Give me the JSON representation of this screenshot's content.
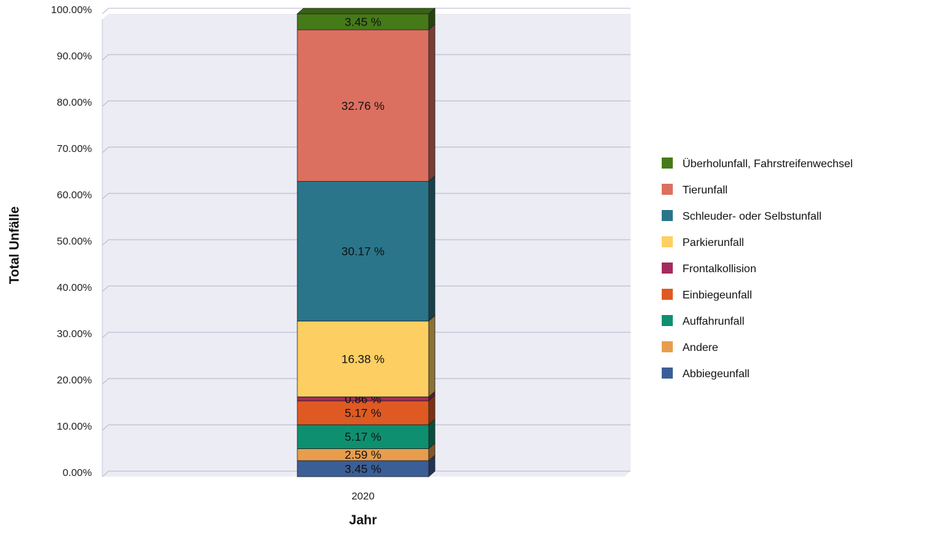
{
  "chart_data": {
    "type": "bar",
    "stacked": true,
    "percent": true,
    "categories": [
      "2020"
    ],
    "xlabel": "Jahr",
    "ylabel": "Total Unfälle",
    "ylim": [
      0,
      100
    ],
    "ytick_labels": [
      "0.00%",
      "10.00%",
      "20.00%",
      "30.00%",
      "40.00%",
      "50.00%",
      "60.00%",
      "70.00%",
      "80.00%",
      "90.00%",
      "100.00%"
    ],
    "grid": true,
    "legend_position": "right",
    "series": [
      {
        "name": "Abbiegeunfall",
        "values": [
          3.45
        ],
        "label": "3.45 %",
        "color": "#3a5f97"
      },
      {
        "name": "Andere",
        "values": [
          2.59
        ],
        "label": "2.59 %",
        "color": "#e89d4d"
      },
      {
        "name": "Auffahrunfall",
        "values": [
          5.17
        ],
        "label": "5.17 %",
        "color": "#0e9070"
      },
      {
        "name": "Einbiegeunfall",
        "values": [
          5.17
        ],
        "label": "5.17 %",
        "color": "#de5a22"
      },
      {
        "name": "Frontalkollision",
        "values": [
          0.86
        ],
        "label": "0.86 %",
        "color": "#a52a5f"
      },
      {
        "name": "Parkierunfall",
        "values": [
          16.38
        ],
        "label": "16.38 %",
        "color": "#fdcf62"
      },
      {
        "name": "Schleuder- oder Selbstunfall",
        "values": [
          30.17
        ],
        "label": "30.17 %",
        "color": "#2a758a"
      },
      {
        "name": "Tierunfall",
        "values": [
          32.76
        ],
        "label": "32.76 %",
        "color": "#dc7060"
      },
      {
        "name": "Überholunfall, Fahrstreifenwechsel",
        "values": [
          3.45
        ],
        "label": "3.45 %",
        "color": "#457a18"
      }
    ]
  }
}
